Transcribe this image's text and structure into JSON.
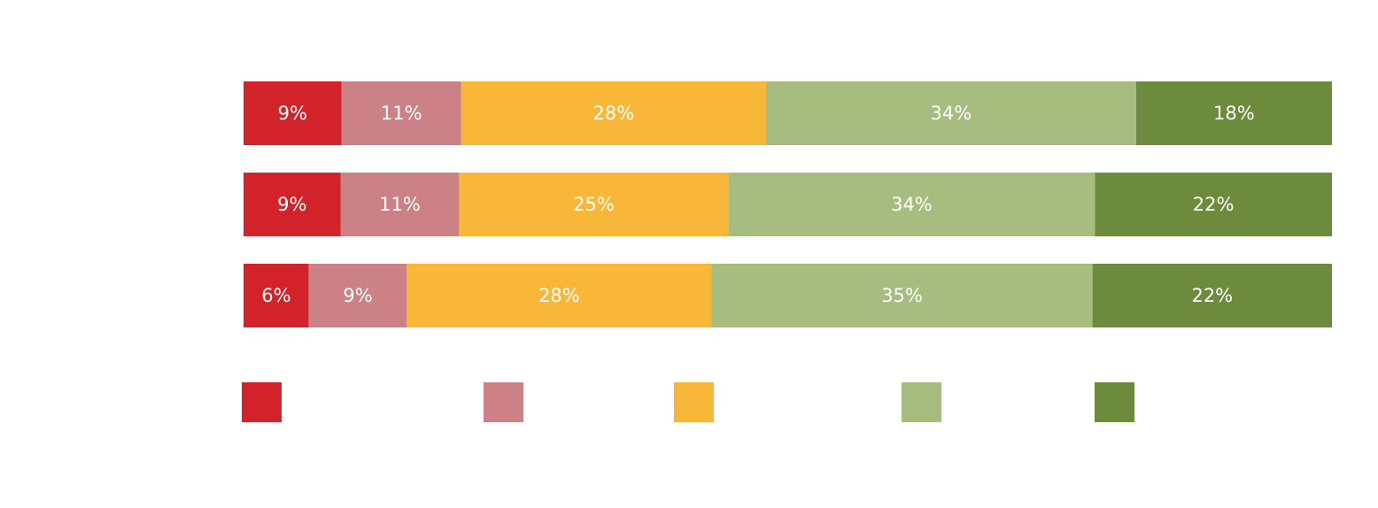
{
  "chart_data": {
    "type": "bar",
    "orientation": "horizontal",
    "stacked": true,
    "categories": [
      null,
      null,
      null
    ],
    "series": [
      {
        "color": "#d2232a",
        "values": [
          9,
          9,
          6
        ],
        "value_labels": [
          "9%",
          "9%",
          "6%"
        ]
      },
      {
        "color": "#cb8185",
        "values": [
          11,
          11,
          9
        ],
        "value_labels": [
          "11%",
          "11%",
          "9%"
        ]
      },
      {
        "color": "#f8b738",
        "values": [
          28,
          25,
          28
        ],
        "value_labels": [
          "28%",
          "25%",
          "28%"
        ]
      },
      {
        "color": "#a6bd7f",
        "values": [
          34,
          34,
          35
        ],
        "value_labels": [
          "34%",
          "34%",
          "35%"
        ]
      },
      {
        "color": "#6d8b3c",
        "values": [
          18,
          22,
          22
        ],
        "value_labels": [
          "18%",
          "22%",
          "22%"
        ]
      }
    ]
  }
}
